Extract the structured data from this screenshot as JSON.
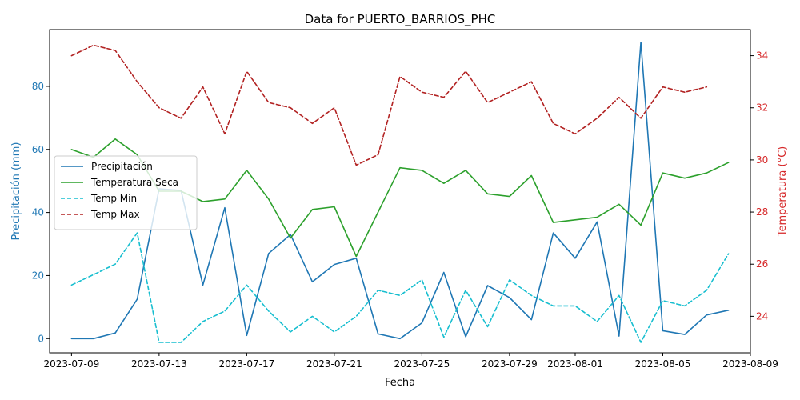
{
  "chart_data": {
    "type": "line",
    "title": "Data for PUERTO_BARRIOS_PHC",
    "xlabel": "Fecha",
    "ylabel_left": "Precipitación (mm)",
    "ylabel_right": "Temperatura (°C)",
    "x_start": "2023-07-09",
    "x_ticks": [
      "2023-07-09",
      "2023-07-13",
      "2023-07-17",
      "2023-07-21",
      "2023-07-25",
      "2023-07-29",
      "2023-08-01",
      "2023-08-05",
      "2023-08-09"
    ],
    "xlim": [
      "2023-07-08",
      "2023-08-09"
    ],
    "ylim_left": [
      -4.5,
      98
    ],
    "yticks_left": [
      0,
      20,
      40,
      60,
      80
    ],
    "ylim_right": [
      22.6,
      35
    ],
    "yticks_right": [
      24,
      26,
      28,
      30,
      32,
      34
    ],
    "left_axis_color": "#1f77b4",
    "right_axis_color": "#d62728",
    "legend_position": "center-left",
    "grid": false,
    "series": [
      {
        "name": "Precipitación",
        "axis": "left",
        "color": "#1f77b4",
        "style": "solid",
        "values": [
          0,
          0,
          1.8,
          12.5,
          47.5,
          47,
          17,
          41.5,
          1,
          27,
          33,
          18,
          23.5,
          25.5,
          1.5,
          0,
          5,
          21,
          0.6,
          16.8,
          13,
          6,
          33.5,
          25.5,
          37,
          0.8,
          94,
          2.5,
          1.3,
          7.5,
          9
        ]
      },
      {
        "name": "Temperatura Seca",
        "axis": "right",
        "color": "#2ca02c",
        "style": "solid",
        "values": [
          30.4,
          30.1,
          30.8,
          30.2,
          28.8,
          28.8,
          28.4,
          28.5,
          29.6,
          28.5,
          27.0,
          28.1,
          28.2,
          26.3,
          28.0,
          29.7,
          29.6,
          29.1,
          29.6,
          28.7,
          28.6,
          29.4,
          27.6,
          27.7,
          27.8,
          28.3,
          27.5,
          29.5,
          29.3,
          29.5,
          29.9
        ]
      },
      {
        "name": "Temp Min",
        "axis": "right",
        "color": "#17becf",
        "style": "dashed",
        "values": [
          25.2,
          25.6,
          26.0,
          27.2,
          23.0,
          23.0,
          23.8,
          24.2,
          25.2,
          24.2,
          23.4,
          24.0,
          23.4,
          24.0,
          25.0,
          24.8,
          25.4,
          23.2,
          25.0,
          23.6,
          25.4,
          24.8,
          24.4,
          24.4,
          23.8,
          24.8,
          23.0,
          24.6,
          24.4,
          25.0,
          26.4
        ]
      },
      {
        "name": "Temp Max",
        "axis": "right",
        "color": "#b22222",
        "style": "dashed",
        "values": [
          34.0,
          34.4,
          34.2,
          33.0,
          32.0,
          31.6,
          32.8,
          31.0,
          33.4,
          32.2,
          32.0,
          31.4,
          32.0,
          29.8,
          30.2,
          33.2,
          32.6,
          32.4,
          33.4,
          32.2,
          32.6,
          33.0,
          31.4,
          31.0,
          31.6,
          32.4,
          31.6,
          32.8,
          32.6,
          32.8
        ]
      }
    ]
  }
}
